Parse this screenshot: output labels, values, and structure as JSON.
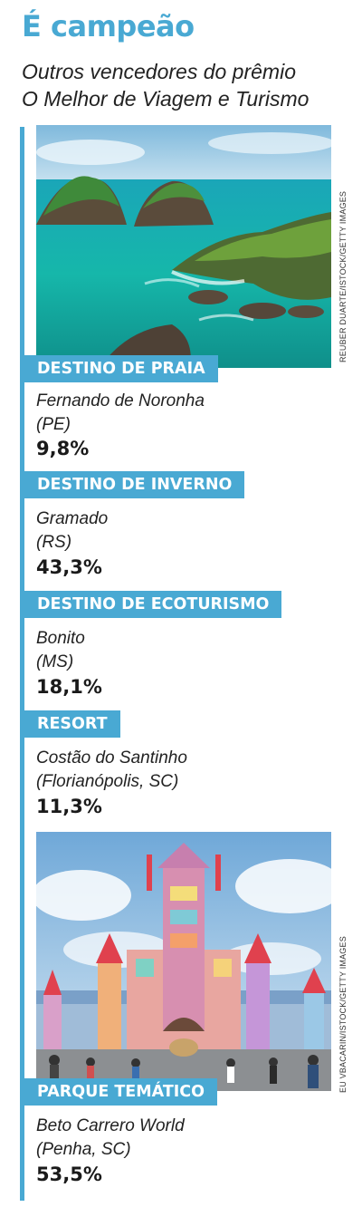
{
  "header": {
    "title": "É campeão",
    "subtitle_line1": "Outros vencedores do prêmio",
    "subtitle_line2": "O Melhor de Viagem e Turismo"
  },
  "photos": [
    {
      "subject": "Fernando de Noronha beach",
      "credit": "REUBER DUARTE/ISTOCK/GETTY IMAGES"
    },
    {
      "subject": "Beto Carrero World castle",
      "credit": "EU VBACARIN/ISTOCK/GETTY IMAGES"
    }
  ],
  "winners": [
    {
      "category": "DESTINO DE PRAIA",
      "name_line1": "Fernando de Noronha",
      "name_line2": "(PE)",
      "percent": "9,8%"
    },
    {
      "category": "DESTINO DE INVERNO",
      "name_line1": "Gramado",
      "name_line2": "(RS)",
      "percent": "43,3%"
    },
    {
      "category": "DESTINO DE ECOTURISMO",
      "name_line1": "Bonito",
      "name_line2": "(MS)",
      "percent": "18,1%"
    },
    {
      "category": "RESORT",
      "name_line1": "Costão do Santinho",
      "name_line2": "(Florianópolis, SC)",
      "percent": "11,3%"
    },
    {
      "category": "PARQUE TEMÁTICO",
      "name_line1": "Beto Carrero World",
      "name_line2": "(Penha, SC)",
      "percent": "53,5%"
    }
  ],
  "colors": {
    "accent": "#49a9d3",
    "text": "#1a1a1a"
  }
}
